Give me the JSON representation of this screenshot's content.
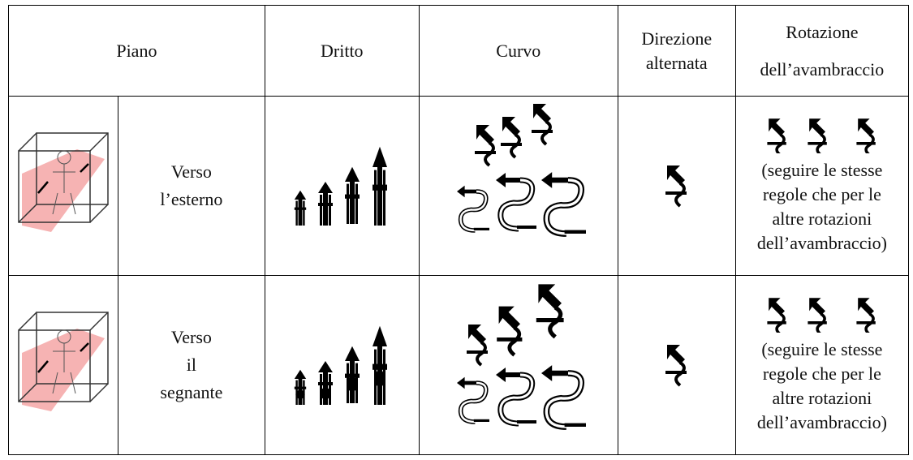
{
  "header": {
    "piano": "Piano",
    "dritto": "Dritto",
    "curvo": "Curvo",
    "direzione": [
      "Direzione",
      "alternata"
    ],
    "rotazione": [
      "Rotazione",
      "dell’avambraccio"
    ]
  },
  "rows": [
    {
      "label": [
        "Verso",
        "l’esterno"
      ],
      "note": [
        "(seguire le stesse",
        "regole che per le",
        "altre rotazioni",
        "dell’avambraccio)"
      ]
    },
    {
      "label": [
        "Verso",
        "il",
        "segnante"
      ],
      "note": [
        "(seguire le stesse",
        "regole che per le",
        "altre rotazioni",
        "dell’avambraccio)"
      ]
    }
  ]
}
